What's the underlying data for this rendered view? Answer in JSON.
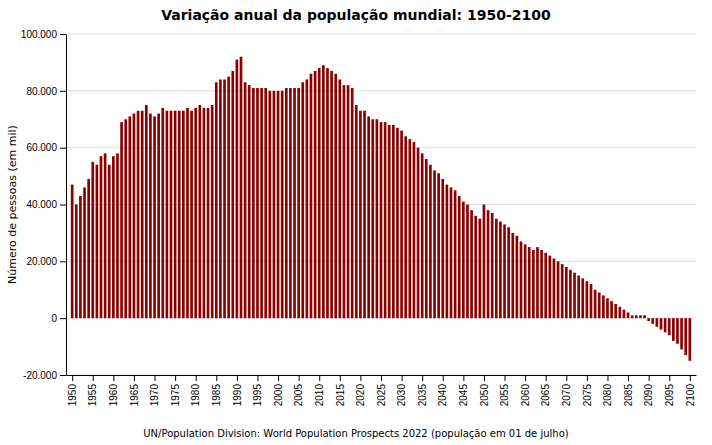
{
  "chart_data": {
    "type": "bar",
    "title": "Variação anual da população mundial: 1950-2100",
    "y_label": "Número de pessoas (em mil)",
    "annotations": [
      "UN/Population Division: World Population Prospects 2022 (população em 01 de julho)"
    ],
    "color": "#8B0000",
    "grid": true,
    "x": [
      1950,
      1951,
      1952,
      1953,
      1954,
      1955,
      1956,
      1957,
      1958,
      1959,
      1960,
      1961,
      1962,
      1963,
      1964,
      1965,
      1966,
      1967,
      1968,
      1969,
      1970,
      1971,
      1972,
      1973,
      1974,
      1975,
      1976,
      1977,
      1978,
      1979,
      1980,
      1981,
      1982,
      1983,
      1984,
      1985,
      1986,
      1987,
      1988,
      1989,
      1990,
      1991,
      1992,
      1993,
      1994,
      1995,
      1996,
      1997,
      1998,
      1999,
      2000,
      2001,
      2002,
      2003,
      2004,
      2005,
      2006,
      2007,
      2008,
      2009,
      2010,
      2011,
      2012,
      2013,
      2014,
      2015,
      2016,
      2017,
      2018,
      2019,
      2020,
      2021,
      2022,
      2023,
      2024,
      2025,
      2026,
      2027,
      2028,
      2029,
      2030,
      2031,
      2032,
      2033,
      2034,
      2035,
      2036,
      2037,
      2038,
      2039,
      2040,
      2041,
      2042,
      2043,
      2044,
      2045,
      2046,
      2047,
      2048,
      2049,
      2050,
      2051,
      2052,
      2053,
      2054,
      2055,
      2056,
      2057,
      2058,
      2059,
      2060,
      2061,
      2062,
      2063,
      2064,
      2065,
      2066,
      2067,
      2068,
      2069,
      2070,
      2071,
      2072,
      2073,
      2074,
      2075,
      2076,
      2077,
      2078,
      2079,
      2080,
      2081,
      2082,
      2083,
      2084,
      2085,
      2086,
      2087,
      2088,
      2089,
      2090,
      2091,
      2092,
      2093,
      2094,
      2095,
      2096,
      2097,
      2098,
      2099,
      2100
    ],
    "values": [
      47000,
      40000,
      43000,
      46000,
      49000,
      55000,
      54000,
      57000,
      58000,
      54000,
      57000,
      58000,
      69000,
      70000,
      71000,
      72000,
      73000,
      73000,
      75000,
      72000,
      71000,
      72000,
      74000,
      73000,
      73000,
      73000,
      73000,
      73000,
      74000,
      73000,
      74000,
      75000,
      74000,
      74000,
      75000,
      83000,
      84000,
      84000,
      85000,
      87000,
      91000,
      92000,
      83000,
      82000,
      81000,
      81000,
      81000,
      81000,
      80000,
      80000,
      80000,
      80000,
      81000,
      81000,
      81000,
      81000,
      83000,
      84000,
      86000,
      87000,
      88000,
      89000,
      88000,
      87000,
      86000,
      84000,
      82000,
      82000,
      81000,
      75000,
      73000,
      73000,
      71000,
      70000,
      70000,
      69000,
      69000,
      68000,
      68000,
      67000,
      66000,
      64000,
      63000,
      62000,
      60000,
      58000,
      56000,
      54000,
      52000,
      51000,
      49000,
      47000,
      46000,
      45000,
      43000,
      41000,
      40000,
      38000,
      36000,
      35000,
      40000,
      38000,
      37000,
      35000,
      34000,
      33000,
      32000,
      30000,
      29000,
      27000,
      26000,
      25000,
      24000,
      25000,
      24000,
      23000,
      22000,
      21000,
      20000,
      19000,
      18000,
      17000,
      16000,
      15000,
      14000,
      13000,
      12000,
      10000,
      9000,
      8000,
      7000,
      6000,
      5000,
      4000,
      3000,
      2000,
      1000,
      1000,
      1000,
      1000,
      -1000,
      -2000,
      -3000,
      -4000,
      -5000,
      -6000,
      -8000,
      -9000,
      -11000,
      -13000,
      -15000
    ],
    "xlim": [
      1948.5,
      2101.5
    ],
    "xticks": [
      1950,
      1955,
      1960,
      1965,
      1970,
      1975,
      1980,
      1985,
      1990,
      1995,
      2000,
      2005,
      2010,
      2015,
      2020,
      2025,
      2030,
      2035,
      2040,
      2045,
      2050,
      2055,
      2060,
      2065,
      2070,
      2075,
      2080,
      2085,
      2090,
      2095,
      2100
    ],
    "ylim": [
      -20000,
      100000
    ],
    "yticks": [
      {
        "value": -20000,
        "label": "-20.000"
      },
      0,
      {
        "value": 20000,
        "label": "20.000"
      },
      {
        "value": 40000,
        "label": "40.000"
      },
      {
        "value": 60000,
        "label": "60.000"
      },
      {
        "value": 80000,
        "label": "80.000"
      },
      {
        "value": 100000,
        "label": "100.000"
      }
    ]
  }
}
